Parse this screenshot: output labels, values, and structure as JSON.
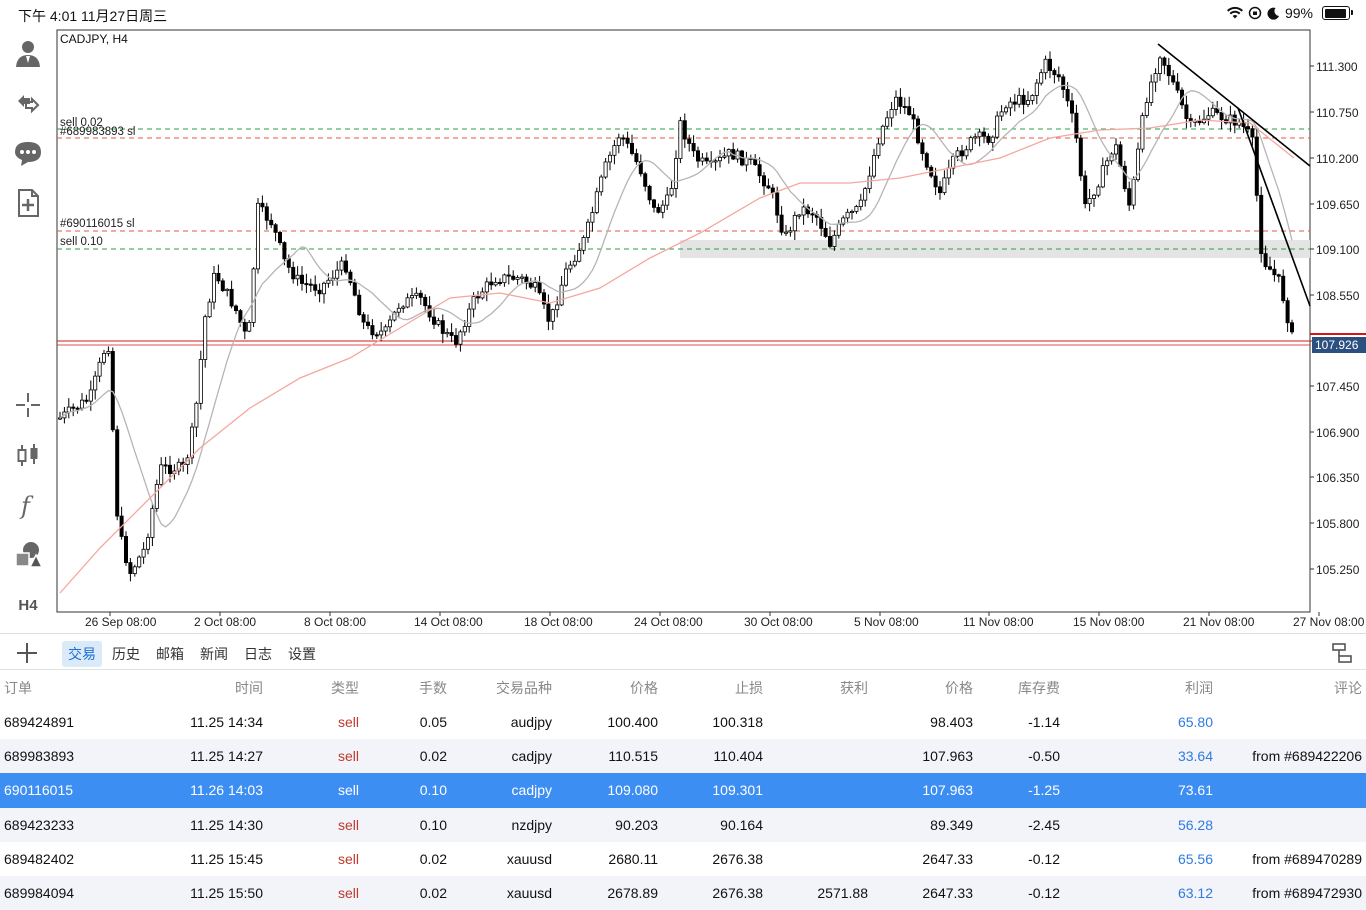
{
  "status_bar": {
    "time": "下午 4:01   11月27日周三",
    "battery": "99%"
  },
  "chart": {
    "symbol_timeframe": "CADJPY, H4",
    "current_price": "107.926",
    "timeframe_button": "H4",
    "y_ticks": [
      "111.300",
      "110.750",
      "110.200",
      "109.650",
      "109.100",
      "108.550",
      "107.450",
      "106.900",
      "106.350",
      "105.800",
      "105.250"
    ],
    "x_ticks": [
      "26 Sep 08:00",
      "2 Oct 08:00",
      "8 Oct 08:00",
      "14 Oct 08:00",
      "18 Oct 08:00",
      "24 Oct 08:00",
      "30 Oct 08:00",
      "5 Nov 08:00",
      "11 Nov 08:00",
      "15 Nov 08:00",
      "21 Nov 08:00",
      "27 Nov 08:00"
    ],
    "line_labels": {
      "sell_002": "sell 0.02",
      "sl_689983893": "#689983893 sl",
      "sl_690116015": "#690116015 sl",
      "sell_010": "sell 0.10"
    },
    "colors": {
      "up_candle": "#ffffff",
      "down_candle": "#000000",
      "fast_ma": "#b5b5b5",
      "slow_ma": "#f4a7a0",
      "entry_line": "#2e9d4a",
      "sl_line": "#e05a4a",
      "bid_line": "#d01818",
      "zone": "#e4e4e4"
    },
    "left_tools": [
      "account-icon",
      "trade-icon",
      "chat-icon",
      "new-document-icon",
      "crosshair-icon",
      "candles-icon",
      "indicator-icon",
      "objects-icon"
    ]
  },
  "tabs": [
    "交易",
    "历史",
    "邮箱",
    "新闻",
    "日志",
    "设置"
  ],
  "table": {
    "headers": {
      "order": "订单",
      "time": "时间",
      "type": "类型",
      "lots": "手数",
      "symbol": "交易品种",
      "price": "价格",
      "sl": "止损",
      "tp": "获利",
      "current": "价格",
      "swap": "库存费",
      "profit": "利润",
      "comment": "评论"
    },
    "rows": [
      {
        "order": "689424891",
        "time": "11.25 14:34",
        "type": "sell",
        "lots": "0.05",
        "symbol": "audjpy",
        "price": "100.400",
        "sl": "100.318",
        "tp": "",
        "current": "98.403",
        "swap": "-1.14",
        "profit": "65.80",
        "comment": ""
      },
      {
        "order": "689983893",
        "time": "11.25 14:27",
        "type": "sell",
        "lots": "0.02",
        "symbol": "cadjpy",
        "price": "110.515",
        "sl": "110.404",
        "tp": "",
        "current": "107.963",
        "swap": "-0.50",
        "profit": "33.64",
        "comment": "from #689422206"
      },
      {
        "order": "690116015",
        "time": "11.26 14:03",
        "type": "sell",
        "lots": "0.10",
        "symbol": "cadjpy",
        "price": "109.080",
        "sl": "109.301",
        "tp": "",
        "current": "107.963",
        "swap": "-1.25",
        "profit": "73.61",
        "comment": ""
      },
      {
        "order": "689423233",
        "time": "11.25 14:30",
        "type": "sell",
        "lots": "0.10",
        "symbol": "nzdjpy",
        "price": "90.203",
        "sl": "90.164",
        "tp": "",
        "current": "89.349",
        "swap": "-2.45",
        "profit": "56.28",
        "comment": ""
      },
      {
        "order": "689482402",
        "time": "11.25 15:45",
        "type": "sell",
        "lots": "0.02",
        "symbol": "xauusd",
        "price": "2680.11",
        "sl": "2676.38",
        "tp": "",
        "current": "2647.33",
        "swap": "-0.12",
        "profit": "65.56",
        "comment": "from #689470289"
      },
      {
        "order": "689984094",
        "time": "11.25 15:50",
        "type": "sell",
        "lots": "0.02",
        "symbol": "xauusd",
        "price": "2678.89",
        "sl": "2676.38",
        "tp": "2571.88",
        "current": "2647.33",
        "swap": "-0.12",
        "profit": "63.12",
        "comment": "from #689472930"
      }
    ],
    "selected_row": 2
  }
}
